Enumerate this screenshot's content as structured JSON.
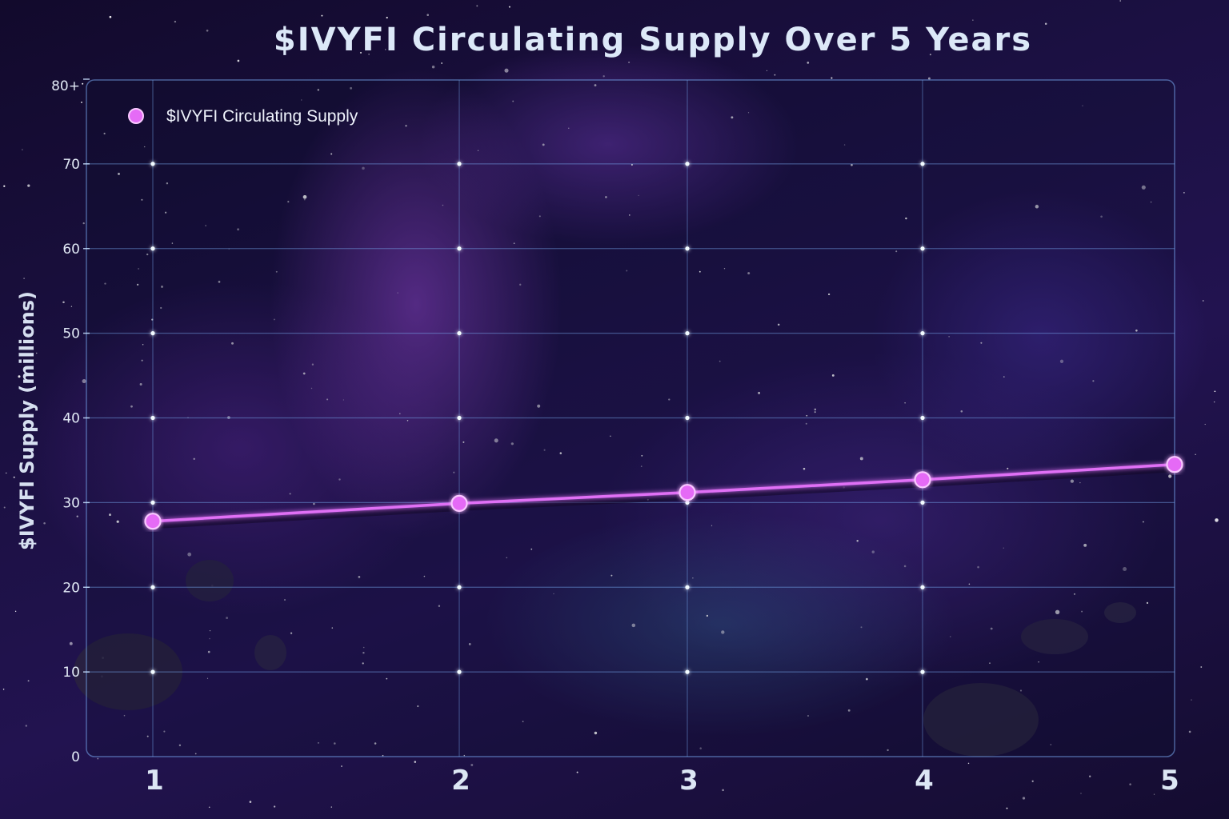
{
  "chart_data": {
    "type": "line",
    "title": "$IVYFI Circulating Supply Over 5 Years",
    "xlabel": "",
    "ylabel": "$IVYFI Supply (millions)",
    "x": [
      1,
      2,
      3,
      4,
      5
    ],
    "x_tick_labels": [
      "1",
      "2",
      "3",
      "4",
      "5"
    ],
    "y_tick_labels": [
      "0",
      "10",
      "20",
      "30",
      "40",
      "50",
      "60",
      "70",
      "80+"
    ],
    "y_ticks": [
      0,
      10,
      20,
      30,
      40,
      50,
      60,
      70,
      80
    ],
    "ylim": [
      0,
      80
    ],
    "grid": true,
    "legend_position": "top-left",
    "series": [
      {
        "name": "$IVYFI Circulating Supply",
        "values": [
          27.8,
          29.9,
          31.2,
          32.7,
          34.5
        ],
        "color": "#e070f5"
      }
    ]
  }
}
